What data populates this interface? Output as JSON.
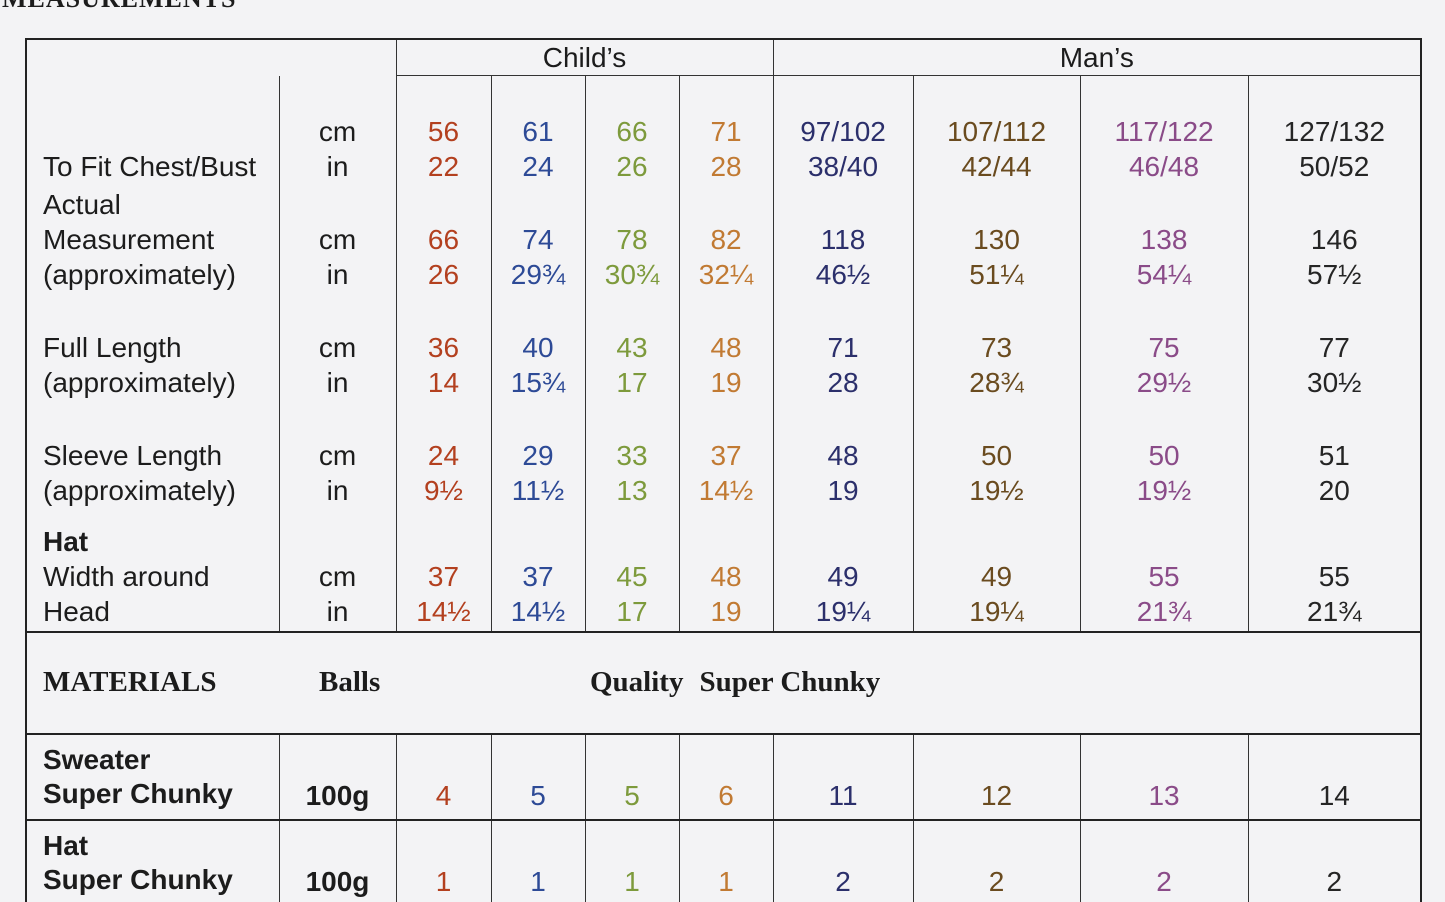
{
  "header": {
    "title": "MEASUREMENTS"
  },
  "table": {
    "groups": [
      {
        "label": "Child’s",
        "colors": [
          "#b3401f",
          "#2d4a96",
          "#7d9a3c",
          "#c17a33"
        ]
      },
      {
        "label": "Man’s",
        "colors": [
          "#2b2f6b",
          "#6a4b1f",
          "#8a4b88",
          "#252525"
        ]
      }
    ],
    "measurements": [
      {
        "label": [
          "To Fit Chest/Bust"
        ],
        "units": [
          "cm",
          "in"
        ],
        "values": [
          [
            "56",
            "22"
          ],
          [
            "61",
            "24"
          ],
          [
            "66",
            "26"
          ],
          [
            "71",
            "28"
          ],
          [
            "97/102",
            "38/40"
          ],
          [
            "107/112",
            "42/44"
          ],
          [
            "117/122",
            "46/48"
          ],
          [
            "127/132",
            "50/52"
          ]
        ]
      },
      {
        "label": [
          "Actual",
          "Measurement",
          "(approximately)"
        ],
        "units": [
          "cm",
          "in"
        ],
        "values": [
          [
            "66",
            "26"
          ],
          [
            "74",
            "29¾"
          ],
          [
            "78",
            "30¾"
          ],
          [
            "82",
            "32¼"
          ],
          [
            "118",
            "46½"
          ],
          [
            "130",
            "51¼"
          ],
          [
            "138",
            "54¼"
          ],
          [
            "146",
            "57½"
          ]
        ]
      },
      {
        "label": [
          "Full Length",
          "(approximately)"
        ],
        "units": [
          "cm",
          "in"
        ],
        "values": [
          [
            "36",
            "14"
          ],
          [
            "40",
            "15¾"
          ],
          [
            "43",
            "17"
          ],
          [
            "48",
            "19"
          ],
          [
            "71",
            "28"
          ],
          [
            "73",
            "28¾"
          ],
          [
            "75",
            "29½"
          ],
          [
            "77",
            "30½"
          ]
        ]
      },
      {
        "label": [
          "Sleeve Length",
          "(approximately)"
        ],
        "units": [
          "cm",
          "in"
        ],
        "values": [
          [
            "24",
            "9½"
          ],
          [
            "29",
            "11½"
          ],
          [
            "33",
            "13"
          ],
          [
            "37",
            "14½"
          ],
          [
            "48",
            "19"
          ],
          [
            "50",
            "19½"
          ],
          [
            "50",
            "19½"
          ],
          [
            "51",
            "20"
          ]
        ]
      },
      {
        "heading": "Hat",
        "label": [
          "Width around",
          "Head"
        ],
        "units": [
          "cm",
          "in"
        ],
        "values": [
          [
            "37",
            "14½"
          ],
          [
            "37",
            "14½"
          ],
          [
            "45",
            "17"
          ],
          [
            "48",
            "19"
          ],
          [
            "49",
            "19¼"
          ],
          [
            "49",
            "19¼"
          ],
          [
            "55",
            "21¾"
          ],
          [
            "55",
            "21¾"
          ]
        ]
      }
    ],
    "materials": {
      "title": "MATERIALS",
      "unit": "Balls",
      "quality_label": "Quality",
      "quality": "Super Chunky",
      "items": [
        {
          "label": [
            "Sweater",
            "Super Chunky"
          ],
          "weight": "100g",
          "values": [
            "4",
            "5",
            "5",
            "6",
            "11",
            "12",
            "13",
            "14"
          ]
        },
        {
          "label": [
            "Hat",
            "Super Chunky"
          ],
          "weight": "100g",
          "values": [
            "1",
            "1",
            "1",
            "1",
            "2",
            "2",
            "2",
            "2"
          ]
        }
      ]
    }
  }
}
